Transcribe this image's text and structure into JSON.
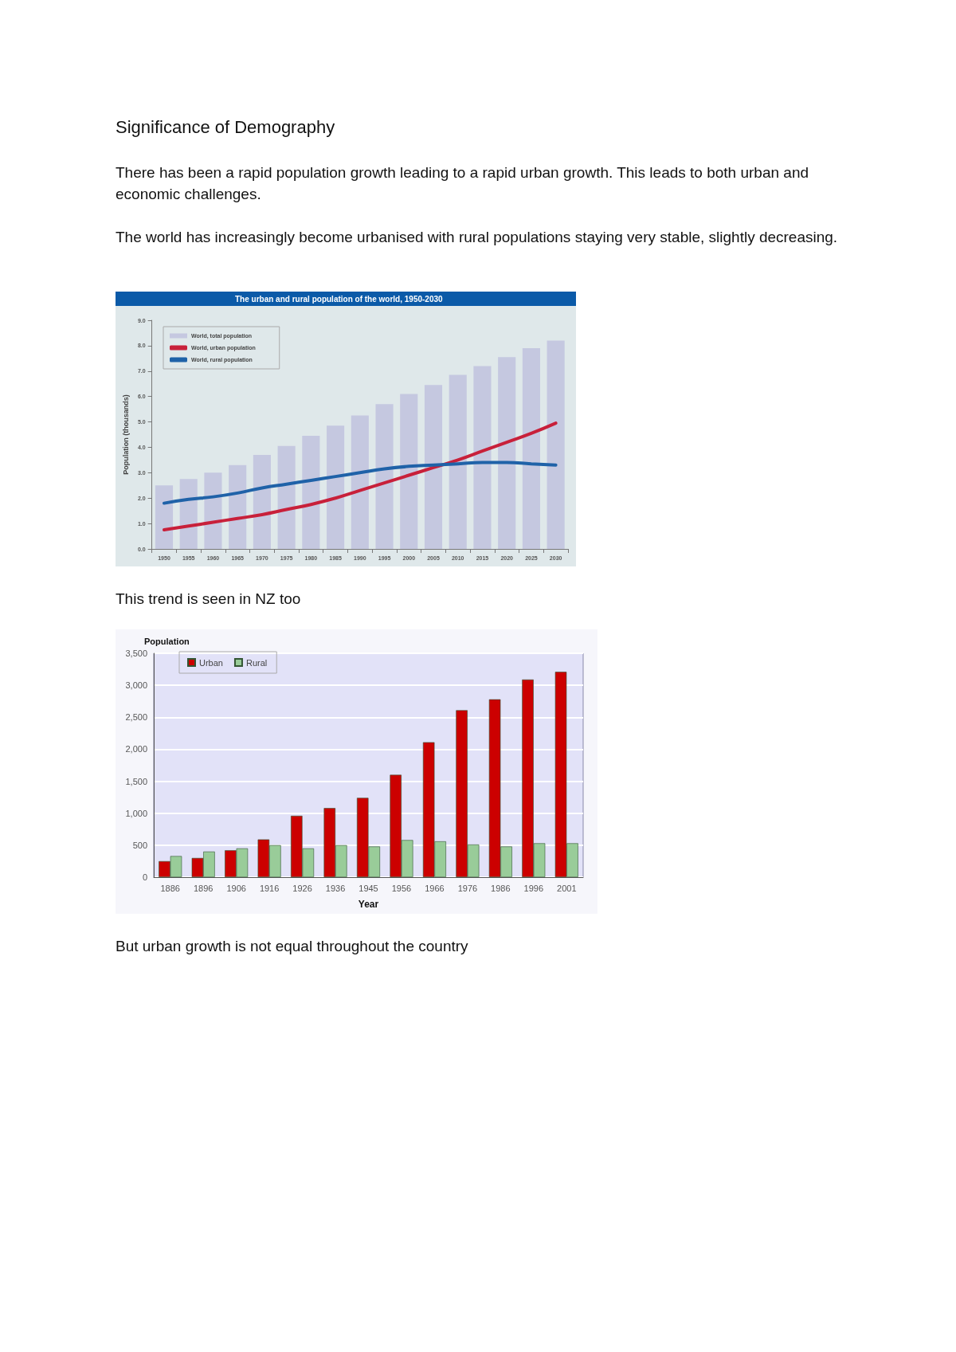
{
  "chart_data": [
    {
      "type": "bar",
      "title": "The urban and rural population of the world, 1950-2030",
      "ylabel": "Population (thousands)",
      "annotations": [
        "Significance of Demography",
        "There has been a rapid population growth leading to a rapid urban growth. This leads to both  urban and economic challenges.",
        "The world has increasingly become urbanised with rural populations staying very stable, slightly decreasing."
      ],
      "categories": [
        "1950",
        "1955",
        "1960",
        "1965",
        "1970",
        "1975",
        "1980",
        "1985",
        "1990",
        "1995",
        "2000",
        "2005",
        "2010",
        "2015",
        "2020",
        "2025",
        "2030"
      ],
      "series": [
        {
          "name": "World, total population",
          "type": "bar",
          "color": "#c5c8e0",
          "values": [
            2.5,
            2.75,
            3.0,
            3.3,
            3.7,
            4.05,
            4.45,
            4.85,
            5.25,
            5.7,
            6.1,
            6.45,
            6.85,
            7.2,
            7.55,
            7.9,
            8.2
          ]
        },
        {
          "name": "World, urban population",
          "type": "line",
          "color": "#c8203a",
          "values": [
            0.75,
            0.9,
            1.05,
            1.2,
            1.35,
            1.55,
            1.75,
            2.0,
            2.3,
            2.6,
            2.9,
            3.2,
            3.5,
            3.85,
            4.2,
            4.55,
            4.95
          ]
        },
        {
          "name": "World, rural population",
          "type": "line",
          "color": "#1f62a8",
          "values": [
            1.8,
            1.95,
            2.05,
            2.2,
            2.4,
            2.55,
            2.7,
            2.85,
            3.0,
            3.15,
            3.25,
            3.3,
            3.35,
            3.4,
            3.4,
            3.35,
            3.3
          ]
        }
      ],
      "ylim": [
        0,
        9
      ],
      "yticks": [
        {
          "value": 0,
          "label": "0.0"
        },
        {
          "value": 1,
          "label": "1.0"
        },
        {
          "value": 2,
          "label": "2.0"
        },
        {
          "value": 3,
          "label": "3.0"
        },
        {
          "value": 4,
          "label": "4.0"
        },
        {
          "value": 5,
          "label": "5.0"
        },
        {
          "value": 6,
          "label": "6.0"
        },
        {
          "value": 7,
          "label": "7.0"
        },
        {
          "value": 8,
          "label": "8.0"
        },
        {
          "value": 9,
          "label": "9.0"
        }
      ],
      "legend": "top left",
      "grid": false
    },
    {
      "type": "bar",
      "ylabel": "Population",
      "xlabel": "Year",
      "annotations": [
        "This trend is seen in NZ too",
        "But urban growth is not equal throughout the country"
      ],
      "categories": [
        "1886",
        "1896",
        "1906",
        "1916",
        "1926",
        "1936",
        "1945",
        "1956",
        "1966",
        "1976",
        "1986",
        "1996",
        "2001"
      ],
      "series": [
        {
          "name": "Urban",
          "color": "#cc0000",
          "values": [
            250,
            300,
            420,
            590,
            960,
            1080,
            1240,
            1600,
            2110,
            2610,
            2780,
            3090,
            3210
          ]
        },
        {
          "name": "Rural",
          "color": "#99cc99",
          "values": [
            330,
            400,
            450,
            500,
            450,
            500,
            480,
            580,
            560,
            510,
            480,
            530,
            530
          ]
        }
      ],
      "ylim": [
        0,
        3500
      ],
      "yticks": [
        0,
        {
          "value": 500,
          "label": "500"
        },
        {
          "value": 1000,
          "label": "1,000"
        },
        {
          "value": 1500,
          "label": "1,500"
        },
        {
          "value": 2000,
          "label": "2,000"
        },
        {
          "value": 2500,
          "label": "2,500"
        },
        {
          "value": 3000,
          "label": "3,000"
        },
        {
          "value": 3500,
          "label": "3,500"
        }
      ],
      "legend": "top left",
      "grid": "y"
    }
  ]
}
